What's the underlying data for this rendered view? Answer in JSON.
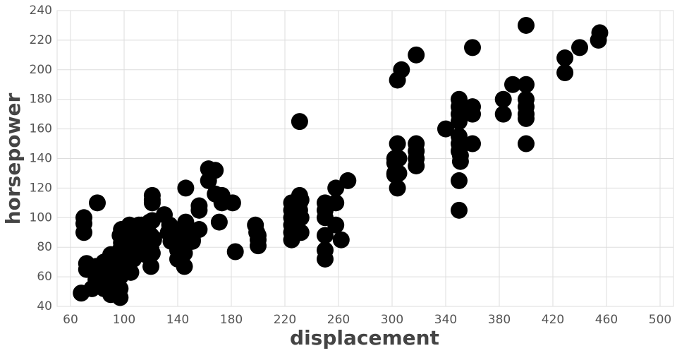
{
  "chart_data": {
    "type": "scatter",
    "x_label": "displacement",
    "y_label": "horsepower",
    "color": "#000000",
    "grid": true,
    "xlim": [
      50,
      510
    ],
    "xticks": [
      60,
      100,
      140,
      180,
      220,
      260,
      300,
      340,
      380,
      420,
      460,
      500
    ],
    "ylim": [
      40,
      240
    ],
    "yticks": [
      40,
      60,
      80,
      100,
      120,
      140,
      160,
      180,
      200,
      220,
      240
    ],
    "x": [
      68,
      70,
      70,
      70,
      72,
      72,
      76,
      79,
      79,
      80,
      83,
      85,
      85,
      85,
      89,
      90,
      90,
      91,
      91,
      97,
      97,
      97,
      97,
      97,
      98,
      98,
      98,
      98,
      98,
      98,
      97,
      100,
      101,
      104,
      105,
      105,
      107,
      107,
      108,
      108,
      110,
      111,
      112,
      113,
      114,
      116,
      116,
      119,
      119,
      120,
      120,
      120,
      121,
      121,
      121,
      121,
      121,
      122,
      122,
      130,
      133,
      134,
      134,
      135,
      140,
      140,
      140,
      140,
      140,
      140,
      141,
      145,
      145,
      146,
      146,
      151,
      151,
      151,
      151,
      156,
      156,
      156,
      163,
      163,
      168,
      168,
      171,
      173,
      173,
      181,
      183,
      198,
      199,
      200,
      200,
      200,
      225,
      225,
      225,
      225,
      225,
      225,
      231,
      231,
      231,
      231,
      232,
      232,
      232,
      250,
      250,
      250,
      250,
      250,
      250,
      258,
      258,
      258,
      262,
      267,
      302,
      302,
      302,
      302,
      304,
      304,
      304,
      305,
      305,
      307,
      318,
      318,
      318,
      318,
      318,
      340,
      350,
      350,
      350,
      350,
      350,
      350,
      350,
      350,
      350,
      351,
      351,
      351,
      360,
      360,
      360,
      360,
      383,
      383,
      390,
      400,
      400,
      400,
      400,
      400,
      400,
      400,
      429,
      429,
      440,
      454,
      455
    ],
    "values": [
      49,
      100,
      96,
      90,
      65,
      69,
      52,
      58,
      67,
      110,
      61,
      65,
      52,
      70,
      62,
      75,
      48,
      53,
      70,
      46,
      60,
      75,
      88,
      78,
      63,
      65,
      80,
      83,
      90,
      92,
      52,
      78,
      83,
      95,
      74,
      63,
      86,
      72,
      93,
      75,
      80,
      95,
      88,
      95,
      91,
      90,
      75,
      82,
      97,
      67,
      79,
      88,
      115,
      112,
      110,
      98,
      76,
      85,
      86,
      102,
      90,
      90,
      95,
      84,
      90,
      88,
      86,
      83,
      78,
      72,
      80,
      67,
      76,
      97,
      120,
      90,
      85,
      88,
      84,
      105,
      92,
      108,
      125,
      133,
      132,
      116,
      97,
      115,
      110,
      110,
      77,
      95,
      90,
      85,
      88,
      81,
      85,
      90,
      95,
      100,
      105,
      110,
      110,
      105,
      115,
      165,
      90,
      100,
      112,
      72,
      78,
      88,
      100,
      105,
      110,
      95,
      110,
      120,
      85,
      125,
      130,
      140,
      129,
      137,
      150,
      120,
      193,
      140,
      130,
      200,
      150,
      140,
      145,
      135,
      210,
      160,
      105,
      125,
      145,
      150,
      155,
      165,
      170,
      175,
      180,
      138,
      148,
      142,
      175,
      170,
      150,
      215,
      170,
      180,
      190,
      150,
      167,
      170,
      175,
      180,
      190,
      230,
      198,
      208,
      215,
      220,
      225
    ]
  }
}
